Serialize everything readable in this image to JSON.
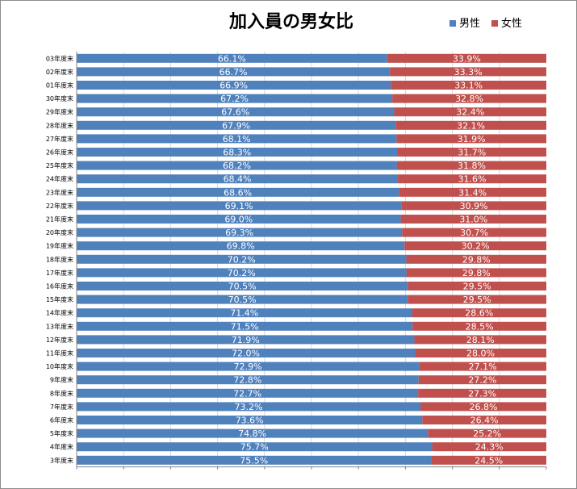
{
  "chart_data": {
    "type": "bar",
    "orientation": "horizontal",
    "stacked": "percent",
    "title": "加入員の男女比",
    "legend_position": "top-right",
    "grid": true,
    "xlim": [
      0,
      100
    ],
    "categories": [
      "03年度末",
      "02年度末",
      "01年度末",
      "30年度末",
      "29年度末",
      "28年度末",
      "27年度末",
      "26年度末",
      "25年度末",
      "24年度末",
      "23年度末",
      "22年度末",
      "21年度末",
      "20年度末",
      "19年度末",
      "18年度末",
      "17年度末",
      "16年度末",
      "15年度末",
      "14年度末",
      "13年度末",
      "12年度末",
      "11年度末",
      "10年度末",
      "9年度末",
      "8年度末",
      "7年度末",
      "6年度末",
      "5年度末",
      "4年度末",
      "3年度末"
    ],
    "series": [
      {
        "name": "男性",
        "color": "#4f81bd",
        "values": [
          66.1,
          66.7,
          66.9,
          67.2,
          67.6,
          67.9,
          68.1,
          68.3,
          68.2,
          68.4,
          68.6,
          69.1,
          69.0,
          69.3,
          69.8,
          70.2,
          70.2,
          70.5,
          70.5,
          71.4,
          71.5,
          71.9,
          72.0,
          72.9,
          72.8,
          72.7,
          73.2,
          73.6,
          74.8,
          75.7,
          75.5
        ],
        "labels": [
          "66.1%",
          "66.7%",
          "66.9%",
          "67.2%",
          "67.6%",
          "67.9%",
          "68.1%",
          "68.3%",
          "68.2%",
          "68.4%",
          "68.6%",
          "69.1%",
          "69.0%",
          "69.3%",
          "69.8%",
          "70.2%",
          "70.2%",
          "70.5%",
          "70.5%",
          "71.4%",
          "71.5%",
          "71.9%",
          "72.0%",
          "72.9%",
          "72.8%",
          "72.7%",
          "73.2%",
          "73.6%",
          "74.8%",
          "75.7%",
          "75.5%"
        ]
      },
      {
        "name": "女性",
        "color": "#c0504d",
        "values": [
          33.9,
          33.3,
          33.1,
          32.8,
          32.4,
          32.1,
          31.9,
          31.7,
          31.8,
          31.6,
          31.4,
          30.9,
          31.0,
          30.7,
          30.2,
          29.8,
          29.8,
          29.5,
          29.5,
          28.6,
          28.5,
          28.1,
          28.0,
          27.1,
          27.2,
          27.3,
          26.8,
          26.4,
          25.2,
          24.3,
          24.5
        ],
        "labels": [
          "33.9%",
          "33.3%",
          "33.1%",
          "32.8%",
          "32.4%",
          "32.1%",
          "31.9%",
          "31.7%",
          "31.8%",
          "31.6%",
          "31.4%",
          "30.9%",
          "31.0%",
          "30.7%",
          "30.2%",
          "29.8%",
          "29.8%",
          "29.5%",
          "29.5%",
          "28.6%",
          "28.5%",
          "28.1%",
          "28.0%",
          "27.1%",
          "27.2%",
          "27.3%",
          "26.8%",
          "26.4%",
          "25.2%",
          "24.3%",
          "24.5%"
        ]
      }
    ]
  }
}
